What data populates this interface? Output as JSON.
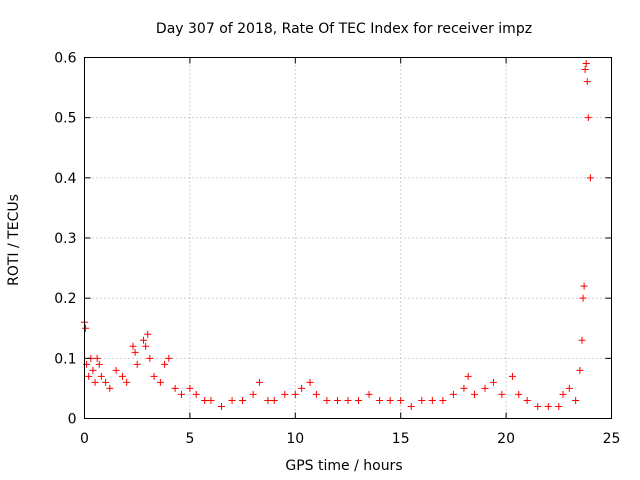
{
  "chart_data": {
    "type": "scatter",
    "title": "Day 307 of 2018, Rate Of TEC Index for receiver impz",
    "xlabel": "GPS time / hours",
    "ylabel": "ROTI / TECUs",
    "xlim": [
      0,
      25
    ],
    "ylim": [
      0,
      0.6
    ],
    "x_ticks": [
      0,
      5,
      10,
      15,
      20,
      25
    ],
    "x_tick_labels": [
      "0",
      "5",
      "10",
      "15",
      "20",
      "25"
    ],
    "y_ticks": [
      0,
      0.1,
      0.2,
      0.3,
      0.4,
      0.5,
      0.6
    ],
    "y_tick_labels": [
      "0",
      "0.1",
      "0.2",
      "0.3",
      "0.4",
      "0.5",
      "0.6"
    ],
    "grid": true,
    "marker": "plus",
    "series": [
      {
        "name": "ROTI",
        "color": "#ff0000",
        "x": [
          0.0,
          0.05,
          0.1,
          0.2,
          0.3,
          0.4,
          0.5,
          0.6,
          0.7,
          0.8,
          1.0,
          1.2,
          1.5,
          1.8,
          2.0,
          2.3,
          2.4,
          2.5,
          2.8,
          2.9,
          3.0,
          3.1,
          3.3,
          3.6,
          3.8,
          4.0,
          4.3,
          4.6,
          5.0,
          5.3,
          5.7,
          6.0,
          6.5,
          7.0,
          7.5,
          8.0,
          8.3,
          8.7,
          9.0,
          9.5,
          10.0,
          10.3,
          10.7,
          11.0,
          11.5,
          12.0,
          12.5,
          13.0,
          13.5,
          14.0,
          14.5,
          15.0,
          15.5,
          16.0,
          16.5,
          17.0,
          17.5,
          18.0,
          18.2,
          18.5,
          19.0,
          19.4,
          19.8,
          20.3,
          20.6,
          21.0,
          21.5,
          22.0,
          22.5,
          22.7,
          23.0,
          23.3,
          23.5,
          23.6,
          23.65,
          23.7,
          23.75,
          23.8,
          23.85,
          23.9,
          24.0
        ],
        "y": [
          0.16,
          0.15,
          0.09,
          0.07,
          0.1,
          0.08,
          0.06,
          0.1,
          0.09,
          0.07,
          0.06,
          0.05,
          0.08,
          0.07,
          0.06,
          0.12,
          0.11,
          0.09,
          0.13,
          0.12,
          0.14,
          0.1,
          0.07,
          0.06,
          0.09,
          0.1,
          0.05,
          0.04,
          0.05,
          0.04,
          0.03,
          0.03,
          0.02,
          0.03,
          0.03,
          0.04,
          0.06,
          0.03,
          0.03,
          0.04,
          0.04,
          0.05,
          0.06,
          0.04,
          0.03,
          0.03,
          0.03,
          0.03,
          0.04,
          0.03,
          0.03,
          0.03,
          0.02,
          0.03,
          0.03,
          0.03,
          0.04,
          0.05,
          0.07,
          0.04,
          0.05,
          0.06,
          0.04,
          0.07,
          0.04,
          0.03,
          0.02,
          0.02,
          0.02,
          0.04,
          0.05,
          0.03,
          0.08,
          0.13,
          0.2,
          0.22,
          0.58,
          0.59,
          0.56,
          0.5,
          0.4
        ]
      }
    ]
  }
}
